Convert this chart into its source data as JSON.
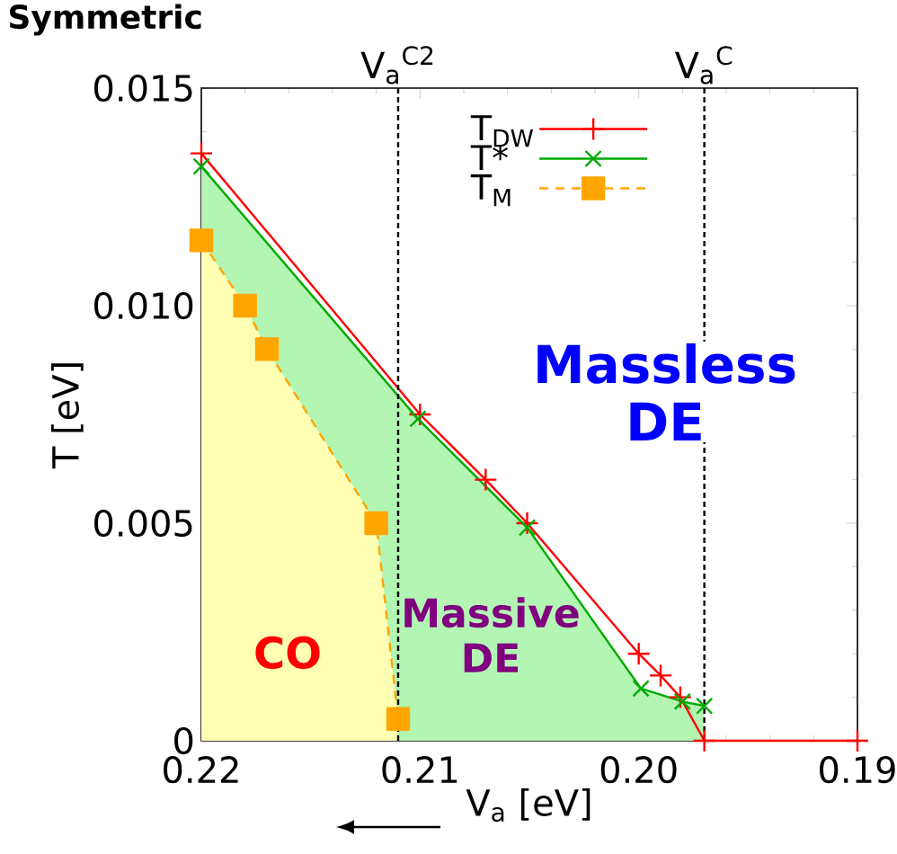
{
  "chart_data": {
    "type": "line",
    "title": "Symmetric",
    "xlabel": "V$_{a}$ [eV]",
    "ylabel": "T [eV]",
    "xlim": [
      0.22,
      0.19
    ],
    "ylim": [
      0,
      0.015
    ],
    "xticks": [
      0.22,
      0.21,
      {
        "value": 0.2,
        "label": "0.20"
      },
      0.19
    ],
    "yticks": [
      0,
      0.005,
      {
        "value": 0.01,
        "label": "0.010"
      },
      0.015
    ],
    "legend": "top right",
    "series": [
      {
        "name": "T$_{DW}$",
        "color": "#ff0000",
        "marker": "plus",
        "line_style": "solid",
        "x": [
          0.22,
          0.21,
          0.207,
          0.2051,
          0.2,
          0.199,
          0.1981,
          0.197,
          0.19
        ],
        "values": [
          0.0135,
          0.0075,
          0.006,
          0.005,
          0.002,
          0.0015,
          0.001,
          0,
          0
        ]
      },
      {
        "name": "T*",
        "color": "#00aa00",
        "marker": "cross",
        "line_style": "solid",
        "x": [
          0.22,
          0.2101,
          0.2051,
          0.1999,
          0.198,
          0.197
        ],
        "values": [
          0.0132,
          0.0074,
          0.0049,
          0.0012,
          0.0009,
          0.0008
        ]
      },
      {
        "name": "T$_{M}$",
        "color": "#ffa500",
        "marker": "square",
        "line_style": "dashed",
        "x": [
          0.22,
          0.218,
          0.217,
          0.212,
          0.211
        ],
        "values": [
          0.0115,
          0.01,
          0.009,
          0.005,
          0.0005
        ]
      }
    ],
    "ref_lines": [
      {
        "axis": "x",
        "value": 0.211,
        "label": "V$_{a}$$^{C2}$",
        "line_style": "dotted"
      },
      {
        "axis": "x",
        "value": 0.197,
        "label": "V$_{a}$$^{C}$",
        "line_style": "dotted"
      }
    ],
    "annotations": [
      "CO",
      "Massive DE",
      "Massless DE"
    ]
  }
}
